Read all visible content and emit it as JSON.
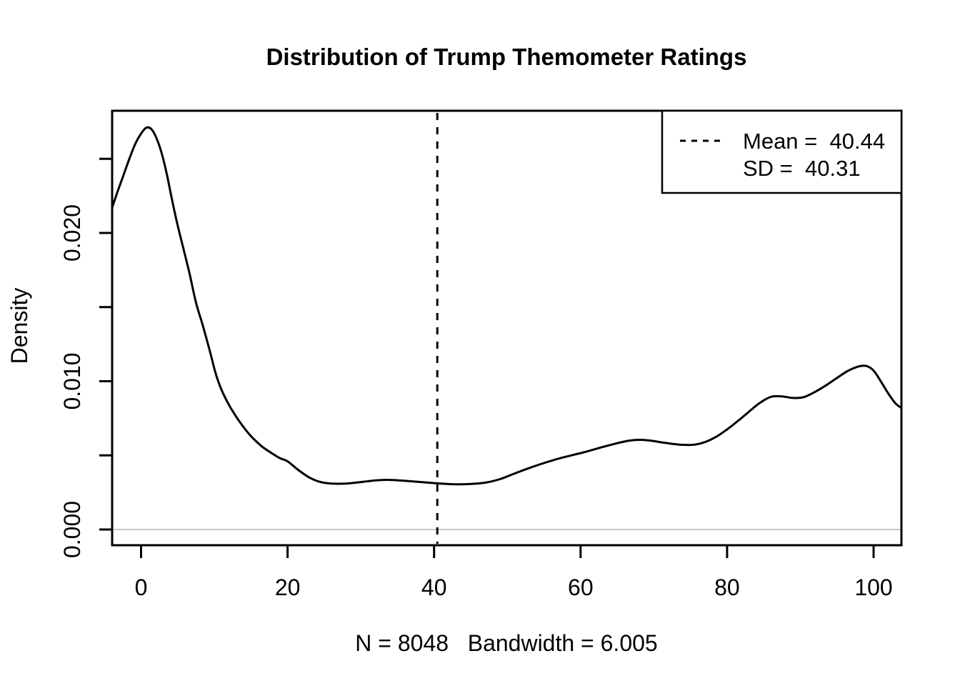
{
  "chart_data": {
    "type": "line",
    "subtype": "kernel-density",
    "title": "Distribution of Trump Themometer Ratings",
    "xlabel": "N = 8048   Bandwidth = 6.005",
    "ylabel": "Density",
    "xlim": [
      -3.95,
      103.8
    ],
    "ylim": [
      -0.00106,
      0.02824
    ],
    "grid": "off",
    "xticks": [
      0,
      20,
      40,
      60,
      80,
      100
    ],
    "yticks": {
      "values": [
        0,
        0.005,
        0.01,
        0.015,
        0.02,
        0.025
      ],
      "labels": [
        "0.000",
        "",
        "0.010",
        "",
        "0.020",
        ""
      ]
    },
    "stats": {
      "n": 8048,
      "bandwidth": 6.005,
      "mean": 40.44,
      "sd": 40.31
    },
    "mean_line": {
      "x": 40.44,
      "style": "dashed"
    },
    "zero_line": {
      "y": 0,
      "color": "#c8c8c8"
    },
    "legend": {
      "position": "topright",
      "entries": [
        {
          "key": "dashed-line",
          "label": "Mean =  40.44"
        },
        {
          "key": "none",
          "label": "SD =  40.31"
        }
      ]
    },
    "colors": {
      "line": "#000000",
      "axis": "#000000",
      "background": "#ffffff"
    },
    "series": [
      {
        "name": "trump-thermometer-density",
        "points": [
          [
            -3.95,
            0.0217
          ],
          [
            -3.2,
            0.0228
          ],
          [
            -2.4,
            0.0239
          ],
          [
            -1.6,
            0.025
          ],
          [
            -0.8,
            0.026
          ],
          [
            0,
            0.0267
          ],
          [
            0.7,
            0.0271
          ],
          [
            1.4,
            0.027
          ],
          [
            2.1,
            0.0264
          ],
          [
            2.8,
            0.0254
          ],
          [
            3.5,
            0.024
          ],
          [
            4.2,
            0.0223
          ],
          [
            5,
            0.0205
          ],
          [
            5.8,
            0.0189
          ],
          [
            6.6,
            0.0173
          ],
          [
            7.5,
            0.0153
          ],
          [
            8.4,
            0.0138
          ],
          [
            9.3,
            0.0122
          ],
          [
            10.2,
            0.0105
          ],
          [
            11,
            0.0094
          ],
          [
            12,
            0.0084
          ],
          [
            13,
            0.0076
          ],
          [
            14,
            0.0069
          ],
          [
            15,
            0.0063
          ],
          [
            16.5,
            0.0056
          ],
          [
            18,
            0.0051
          ],
          [
            19,
            0.0048
          ],
          [
            20,
            0.0046
          ],
          [
            21.5,
            0.004
          ],
          [
            23,
            0.0035
          ],
          [
            24.5,
            0.0032
          ],
          [
            26,
            0.0031
          ],
          [
            28,
            0.0031
          ],
          [
            30,
            0.0032
          ],
          [
            32,
            0.00331
          ],
          [
            33.5,
            0.00335
          ],
          [
            35,
            0.00332
          ],
          [
            37,
            0.00325
          ],
          [
            39,
            0.00317
          ],
          [
            41,
            0.0031
          ],
          [
            43,
            0.00305
          ],
          [
            45,
            0.00307
          ],
          [
            47,
            0.00316
          ],
          [
            49,
            0.0034
          ],
          [
            51,
            0.00378
          ],
          [
            53,
            0.00415
          ],
          [
            55,
            0.00448
          ],
          [
            57,
            0.00478
          ],
          [
            59,
            0.00503
          ],
          [
            61,
            0.00528
          ],
          [
            63,
            0.00556
          ],
          [
            65,
            0.00582
          ],
          [
            66.5,
            0.00598
          ],
          [
            68,
            0.00605
          ],
          [
            69.5,
            0.006
          ],
          [
            71,
            0.00588
          ],
          [
            72.5,
            0.00578
          ],
          [
            74,
            0.00571
          ],
          [
            75.5,
            0.00572
          ],
          [
            77,
            0.0059
          ],
          [
            78.5,
            0.00625
          ],
          [
            80,
            0.00675
          ],
          [
            81.5,
            0.00733
          ],
          [
            83,
            0.00795
          ],
          [
            84.5,
            0.00855
          ],
          [
            86,
            0.00895
          ],
          [
            87.5,
            0.00898
          ],
          [
            89,
            0.00887
          ],
          [
            90.5,
            0.00893
          ],
          [
            92,
            0.00928
          ],
          [
            93.5,
            0.00972
          ],
          [
            95,
            0.01022
          ],
          [
            96.5,
            0.0107
          ],
          [
            98,
            0.011
          ],
          [
            99,
            0.01103
          ],
          [
            100,
            0.01072
          ],
          [
            101,
            0.00998
          ],
          [
            102,
            0.00918
          ],
          [
            103,
            0.0085
          ],
          [
            103.8,
            0.0082
          ]
        ]
      }
    ]
  }
}
